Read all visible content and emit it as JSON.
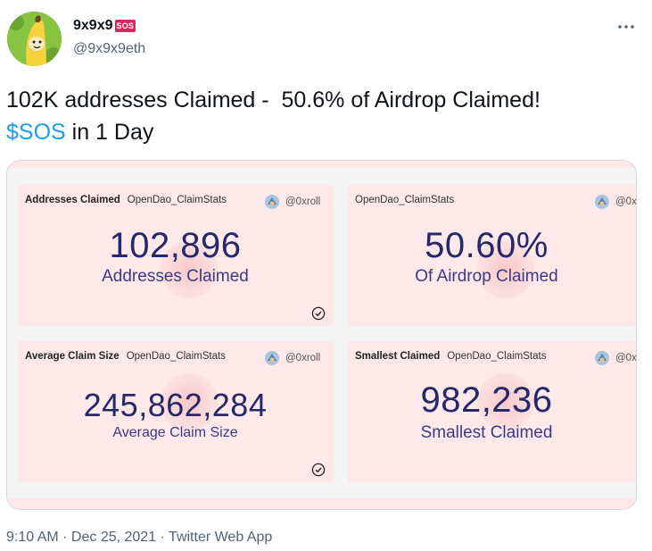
{
  "author": {
    "display_name": "9x9x9",
    "badge": "SOS",
    "handle": "@9x9x9eth",
    "avatar_icon": "banana-character-avatar"
  },
  "tweet": {
    "line1": "102K addresses Claimed -  50.6% of Airdrop Claimed!",
    "cashtag": "$SOS",
    "line2_rest": " in 1 Day"
  },
  "media": {
    "cards": [
      {
        "title": "Addresses Claimed",
        "source": "OpenDao_ClaimStats",
        "user": "@0xroll",
        "value": "102,896",
        "label": "Addresses Claimed",
        "verified": true
      },
      {
        "title": "",
        "source": "OpenDao_ClaimStats",
        "user": "@0x",
        "value": "50.60%",
        "label": "Of Airdrop Claimed",
        "verified": false
      },
      {
        "title": "Average Claim Size",
        "source": "OpenDao_ClaimStats",
        "user": "@0xroll",
        "value": "245,862,284",
        "label": "Average Claim Size",
        "verified": true
      },
      {
        "title": "Smallest Claimed",
        "source": "OpenDao_ClaimStats",
        "user": "@0x",
        "value": "982,236",
        "label": "Smallest Claimed",
        "verified": false
      }
    ]
  },
  "footer": {
    "time": "9:10 AM",
    "separator": " · ",
    "date": "Dec 25, 2021",
    "app": "Twitter Web App"
  },
  "colors": {
    "link": "#1d9bf0",
    "card_bg": "#fde9e9",
    "value_text": "#27276b",
    "badge": "#e0245e"
  }
}
